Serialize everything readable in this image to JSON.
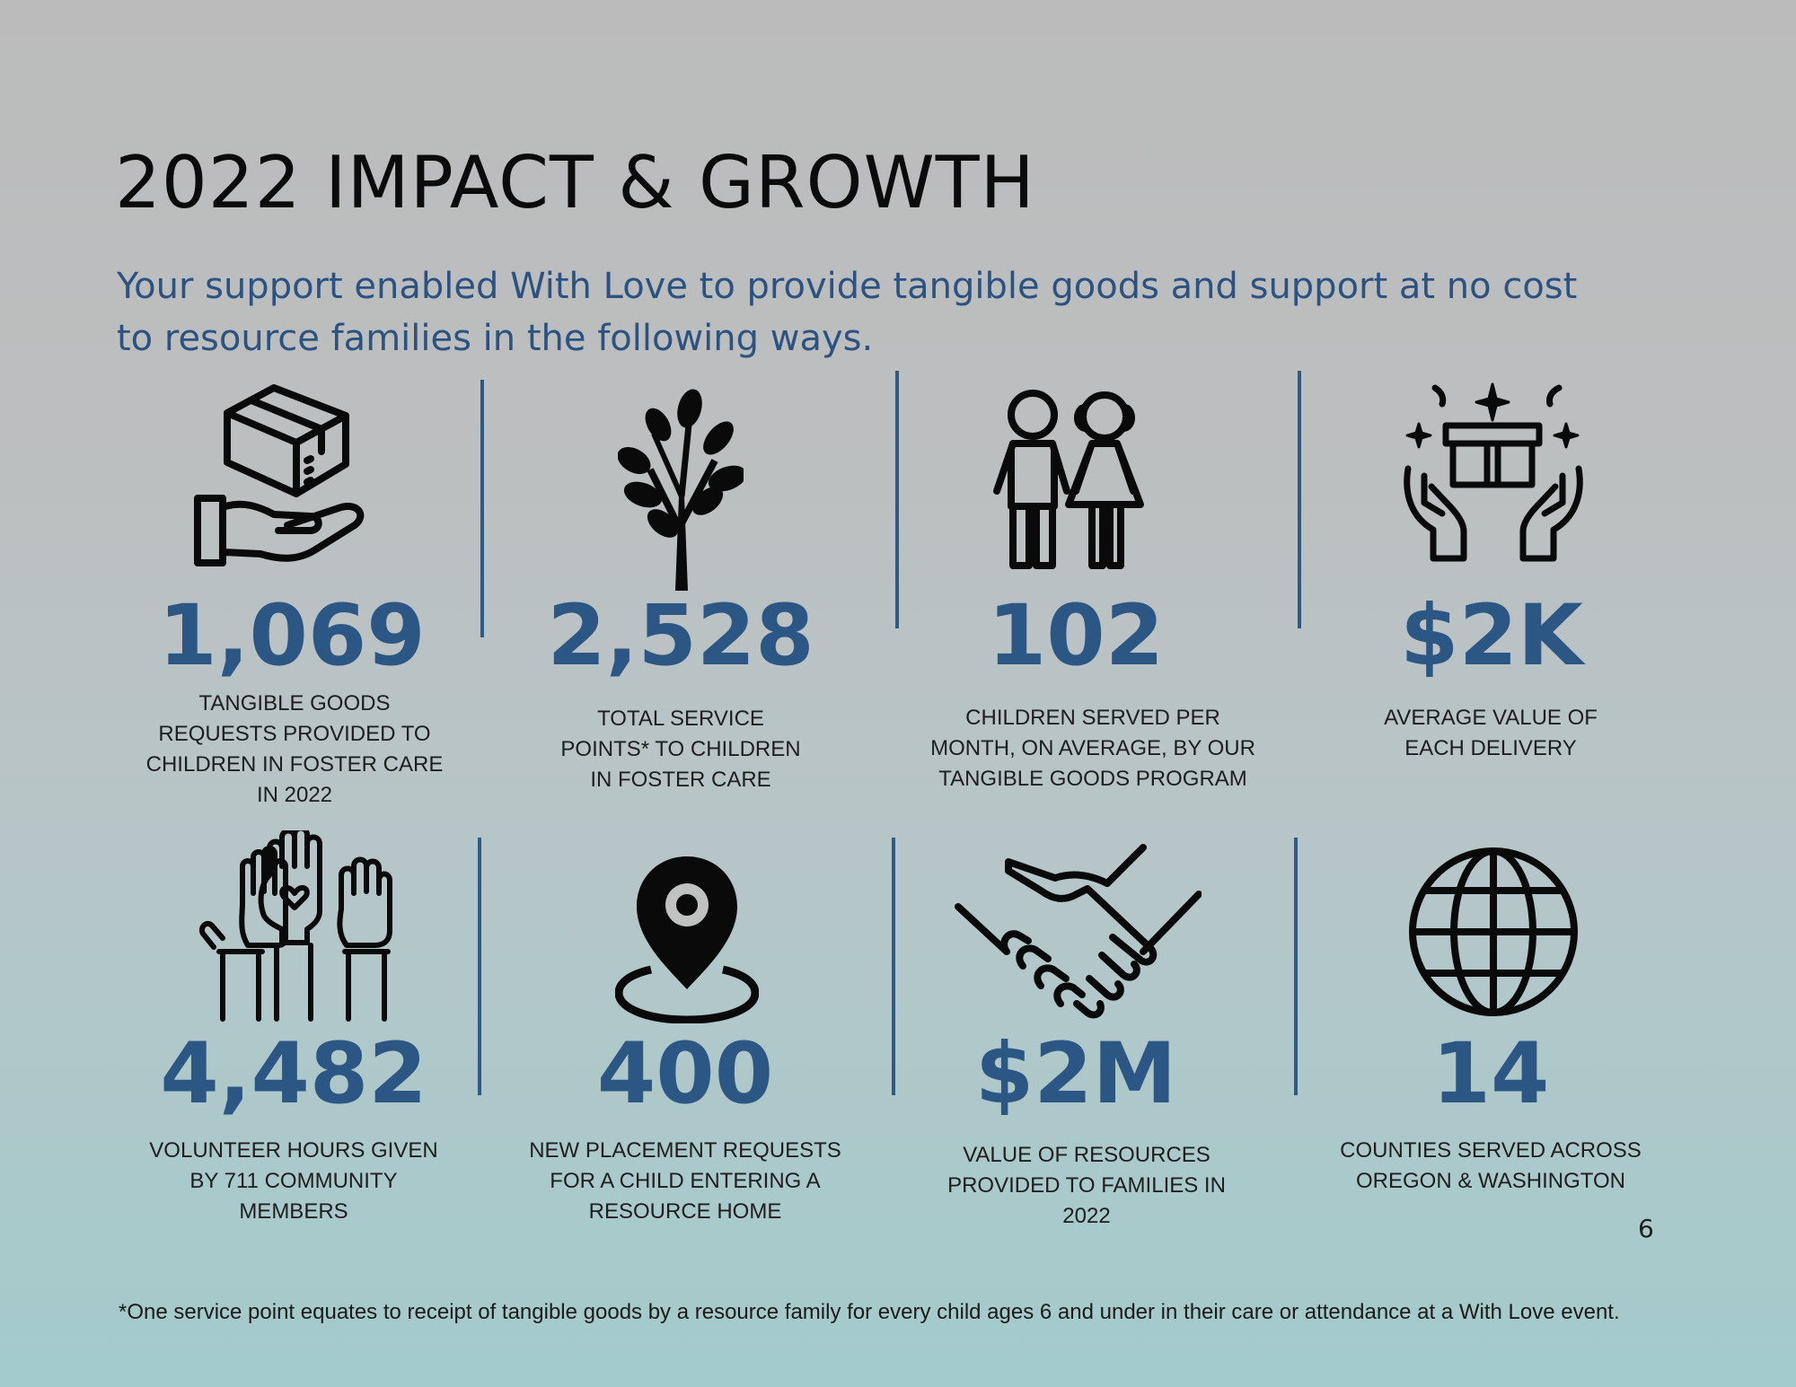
{
  "page": {
    "title": "2022 IMPACT & GROWTH",
    "intro": "Your support enabled With Love to provide tangible goods and support at no cost to resource families in the following ways.",
    "page_number": "6",
    "footnote": "*One service point equates to receipt of tangible goods by a resource family for every child ages 6 and under in their care or attendance at a With Love event.",
    "colors": {
      "accent": "#2c5684",
      "text": "#1e1e1e"
    }
  },
  "stats": [
    {
      "icon": "hand-holding-box-icon",
      "value": "1,069",
      "desc": [
        "TANGIBLE GOODS",
        "REQUESTS PROVIDED TO",
        "CHILDREN IN FOSTER CARE",
        "IN 2022"
      ]
    },
    {
      "icon": "tree-icon",
      "value": "2,528",
      "desc": [
        "TOTAL SERVICE",
        "POINTS* TO CHILDREN",
        "IN FOSTER CARE"
      ]
    },
    {
      "icon": "children-icon",
      "value": "102",
      "desc": [
        "CHILDREN SERVED PER",
        "MONTH, ON AVERAGE, BY OUR",
        "TANGIBLE GOODS PROGRAM"
      ]
    },
    {
      "icon": "hands-gift-icon",
      "value": "$2K",
      "desc": [
        "AVERAGE VALUE OF",
        "EACH DELIVERY"
      ]
    },
    {
      "icon": "raised-hands-icon",
      "value": "4,482",
      "desc": [
        "VOLUNTEER HOURS GIVEN",
        "BY 711 COMMUNITY",
        "MEMBERS"
      ]
    },
    {
      "icon": "location-pin-icon",
      "value": "400",
      "desc": [
        "NEW PLACEMENT REQUESTS",
        "FOR A CHILD ENTERING A",
        "RESOURCE HOME"
      ]
    },
    {
      "icon": "handshake-icon",
      "value": "$2M",
      "desc": [
        "VALUE OF RESOURCES",
        "PROVIDED TO FAMILIES IN",
        "2022"
      ]
    },
    {
      "icon": "globe-icon",
      "value": "14",
      "desc": [
        "COUNTIES SERVED ACROSS",
        "OREGON & WASHINGTON"
      ]
    }
  ]
}
